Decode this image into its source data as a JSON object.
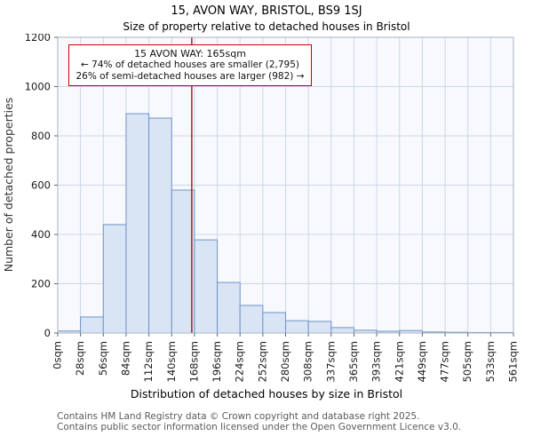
{
  "chart_data": {
    "type": "bar",
    "title": "15, AVON WAY, BRISTOL, BS9 1SJ",
    "subtitle": "Size of property relative to detached houses in Bristol",
    "xlabel": "Distribution of detached houses by size in Bristol",
    "ylabel": "Number of detached properties",
    "x_tick_labels": [
      "0sqm",
      "28sqm",
      "56sqm",
      "84sqm",
      "112sqm",
      "140sqm",
      "168sqm",
      "196sqm",
      "224sqm",
      "252sqm",
      "280sqm",
      "308sqm",
      "337sqm",
      "365sqm",
      "393sqm",
      "421sqm",
      "449sqm",
      "477sqm",
      "505sqm",
      "533sqm",
      "561sqm"
    ],
    "values": [
      8,
      65,
      440,
      890,
      872,
      580,
      378,
      205,
      112,
      83,
      50,
      47,
      22,
      11,
      7,
      10,
      4,
      3,
      2,
      2
    ],
    "ylim": [
      0,
      1200
    ],
    "y_ticks": [
      0,
      200,
      400,
      600,
      800,
      1000,
      1200
    ],
    "x_max_sqm": 561,
    "grid": "on",
    "marker": {
      "value_sqm": 165,
      "color": "#a00000"
    },
    "annotation": {
      "line1": "15 AVON WAY: 165sqm",
      "line2": "← 74% of detached houses are smaller (2,795)",
      "line3": "26% of semi-detached houses are larger (982) →"
    },
    "colors": {
      "bar_fill": "#d9e4f4",
      "bar_stroke": "#7094c8",
      "grid": "#ccd7ea",
      "plot_bg": "#f7f9fd",
      "plot_border": "#a9b3c4",
      "annotation_border": "#cc0000"
    }
  },
  "footer": {
    "line1": "Contains HM Land Registry data © Crown copyright and database right 2025.",
    "line2": "Contains public sector information licensed under the Open Government Licence v3.0."
  }
}
